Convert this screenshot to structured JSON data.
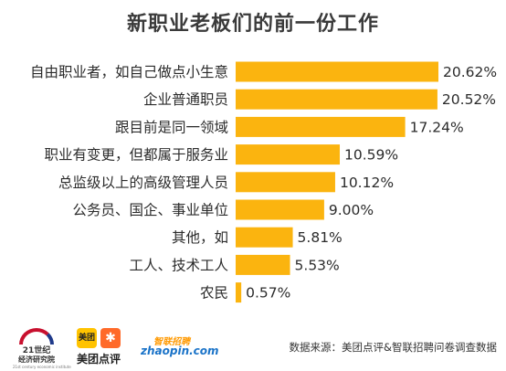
{
  "chart_data": {
    "type": "bar",
    "orientation": "horizontal",
    "title": "新职业老板们的前一份工作",
    "categories": [
      "自由职业者，如自己做点小生意",
      "企业普通职员",
      "跟目前是同一领域",
      "职业有变更，但都属于服务业",
      "总监级以上的高级管理人员",
      "公务员、国企、事业单位",
      "其他，如",
      "工人、技术工人",
      "农民"
    ],
    "values": [
      20.62,
      20.52,
      17.24,
      10.59,
      10.12,
      9.0,
      5.81,
      5.53,
      0.57
    ],
    "value_labels": [
      "20.62%",
      "20.52%",
      "17.24%",
      "10.59%",
      "10.12%",
      "9.00%",
      "5.81%",
      "5.53%",
      "0.57%"
    ],
    "xlim": [
      0,
      20.62
    ],
    "bar_color": "#fbb40f",
    "grid": false,
    "legend": "none"
  },
  "footer": {
    "source": "数据来源：美团点评&智联招聘问卷调查数据",
    "logo_21": {
      "line1": "21世纪",
      "line2": "经济研究院",
      "line3": "21st century economic institute"
    },
    "logo_meituan": {
      "badge": "美团",
      "name": "美团点评"
    },
    "logo_zhaopin": {
      "top": "智联招聘",
      "main": "zhaopin.com"
    }
  }
}
